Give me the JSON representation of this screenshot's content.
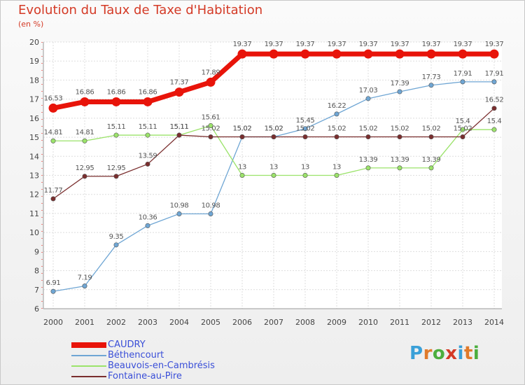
{
  "header": {
    "title": "Evolution du Taux de Taxe d'Habitation",
    "subtitle": "(en %)"
  },
  "logo": {
    "text": "Proxiti",
    "letter_colors": [
      "#3aa0d8",
      "#e07a2a",
      "#4cae3e",
      "#d43a26",
      "#3aa0d8",
      "#e07a2a",
      "#4cae3e"
    ]
  },
  "chart_data": {
    "type": "line",
    "x": [
      2000,
      2001,
      2002,
      2003,
      2004,
      2005,
      2006,
      2007,
      2008,
      2009,
      2010,
      2011,
      2012,
      2013,
      2014
    ],
    "ylim": [
      6,
      20
    ],
    "yticks": [
      6,
      7,
      8,
      9,
      10,
      11,
      12,
      13,
      14,
      15,
      16,
      17,
      18,
      19,
      20
    ],
    "grid": true,
    "legend_position": "bottom-left",
    "series": [
      {
        "name": "CAUDRY",
        "color": "#e8140a",
        "emphasis": true,
        "values": [
          16.53,
          16.86,
          16.86,
          16.86,
          17.37,
          17.89,
          19.37,
          19.37,
          19.37,
          19.37,
          19.37,
          19.37,
          19.37,
          19.37,
          19.37
        ],
        "labels": [
          "16.53",
          "16.86",
          "16.86",
          "16.86",
          "17.37",
          "17.89",
          "19.37",
          "19.37",
          "19.37",
          "19.37",
          "19.37",
          "19.37",
          "19.37",
          "19.37",
          "19.37"
        ]
      },
      {
        "name": "Béthencourt",
        "color": "#6fa6d4",
        "values": [
          6.91,
          7.19,
          9.35,
          10.36,
          10.98,
          10.98,
          15.02,
          15.02,
          15.45,
          16.22,
          17.03,
          17.39,
          17.73,
          17.91,
          17.91
        ],
        "labels": [
          "6.91",
          "7.19",
          "9.35",
          "10.36",
          "10.98",
          "10.98",
          "15.02",
          "15.02",
          "15.45",
          "16.22",
          "17.03",
          "17.39",
          "17.73",
          "17.91",
          "17.91"
        ]
      },
      {
        "name": "Beauvois-en-Cambrésis",
        "color": "#9be36a",
        "values": [
          14.81,
          14.81,
          15.11,
          15.11,
          15.11,
          15.61,
          13,
          13,
          13,
          13,
          13.39,
          13.39,
          13.39,
          15.4,
          15.4
        ],
        "labels": [
          "14.81",
          "14.81",
          "15.11",
          "15.11",
          "15.11",
          "15.61",
          "13",
          "13",
          "13",
          "13",
          "13.39",
          "13.39",
          "13.39",
          "15.4",
          "15.4"
        ]
      },
      {
        "name": "Fontaine-au-Pire",
        "color": "#7a2e2e",
        "values": [
          11.77,
          12.95,
          12.95,
          13.59,
          15.11,
          15.02,
          15.02,
          15.02,
          15.02,
          15.02,
          15.02,
          15.02,
          15.02,
          15.02,
          16.52
        ],
        "labels": [
          "11.77",
          "12.95",
          "12.95",
          "13.59",
          "15.11",
          "15.02",
          "15.02",
          "15.02",
          "15.02",
          "15.02",
          "15.02",
          "15.02",
          "15.02",
          "15.02",
          "16.52"
        ]
      }
    ]
  }
}
